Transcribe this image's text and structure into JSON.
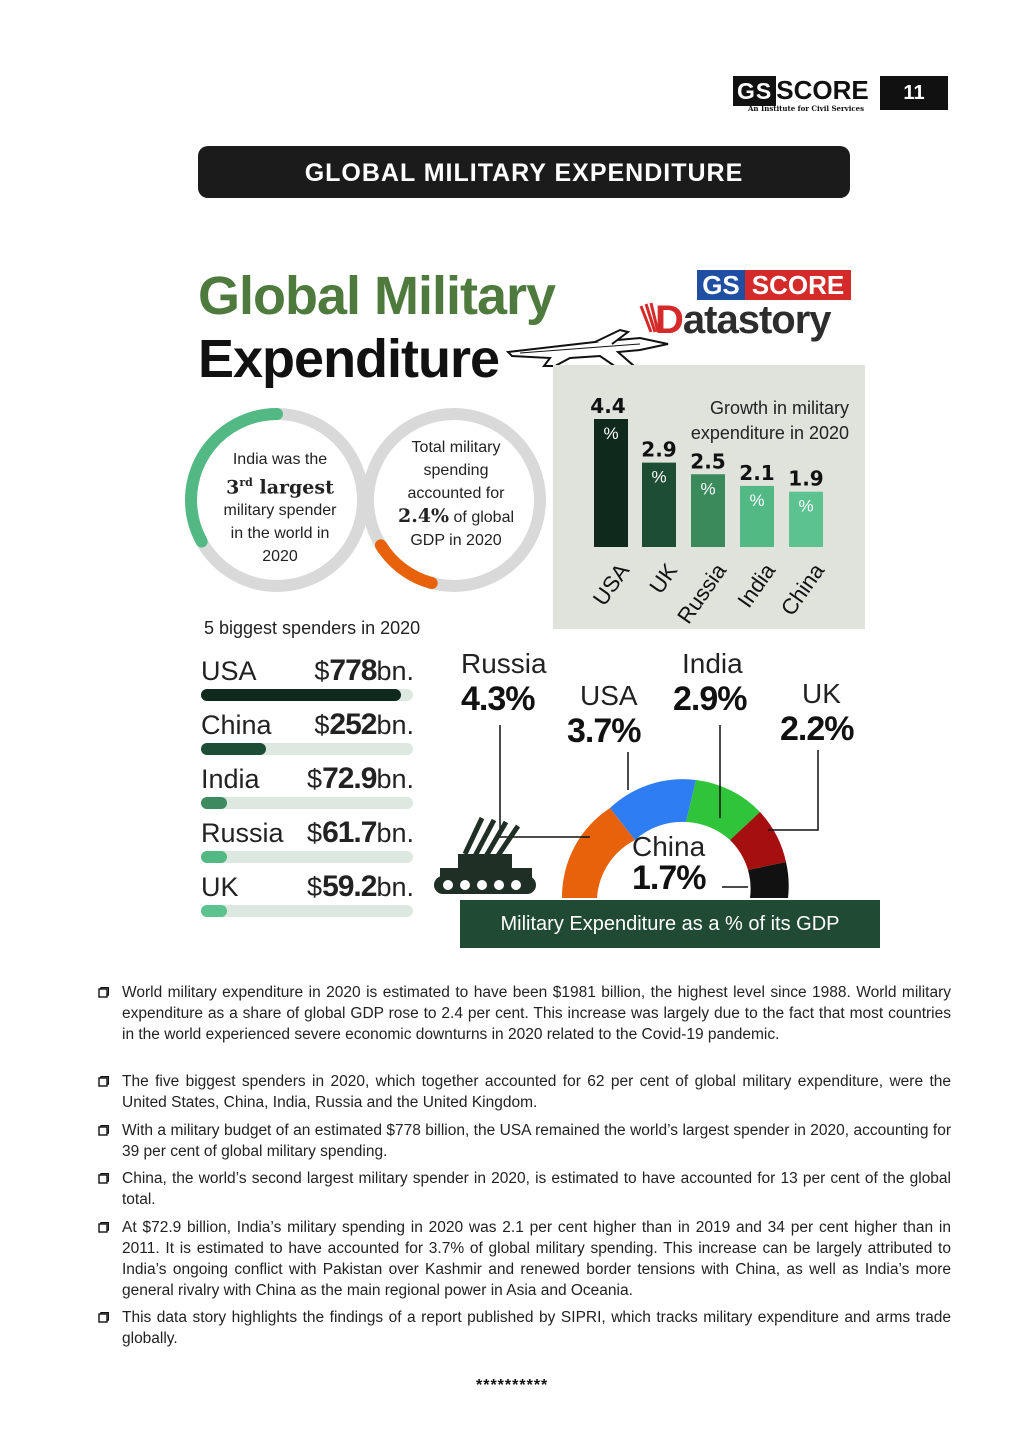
{
  "header": {
    "logo_gs": "GS",
    "logo_score": "SCORE",
    "logo_tagline": "An Institute for Civil Services",
    "page_number": "11"
  },
  "banner_title": "GLOBAL MILITARY EXPENDITURE",
  "infographic": {
    "title_line1": "Global Military",
    "title_line2": "Expenditure",
    "brand_gs": "GS",
    "brand_score": "SCORE",
    "brand_datastory_d": "D",
    "brand_datastory_rest": "atastory",
    "circle1": {
      "line1": "India was the",
      "rank": "3",
      "rank_suffix": "rd",
      "rank_word": "largest",
      "line3": "military spender",
      "line4": "in the world in",
      "line5": "2020",
      "progress_fraction": 0.33
    },
    "circle2": {
      "line1": "Total military",
      "line2": "spending",
      "line3": "accounted for",
      "highlight": "2.4%",
      "line4_rest": "of global",
      "line5": "GDP in 2020",
      "progress_fraction": 0.12
    },
    "growth_title_line1": "Growth in military",
    "growth_title_line2": "expenditure in 2020",
    "growth_unit": "%",
    "spenders_heading": "5 biggest spenders in 2020",
    "spenders": [
      {
        "name": "USA",
        "currency": "$",
        "amount": "778",
        "unit": "bn.",
        "value": 778,
        "color": "#0f2a1c"
      },
      {
        "name": "China",
        "currency": "$",
        "amount": "252",
        "unit": "bn.",
        "value": 252,
        "color": "#1d4d33"
      },
      {
        "name": "India",
        "currency": "$",
        "amount": "72.9",
        "unit": "bn.",
        "value": 72.9,
        "color": "#3d8a5e"
      },
      {
        "name": "Russia",
        "currency": "$",
        "amount": "61.7",
        "unit": "bn.",
        "value": 61.7,
        "color": "#52b985"
      },
      {
        "name": "UK",
        "currency": "$",
        "amount": "59.2",
        "unit": "bn.",
        "value": 59.2,
        "color": "#5cc290"
      }
    ],
    "gdp_labels": [
      {
        "country": "Russia",
        "value": "4.3%"
      },
      {
        "country": "USA",
        "value": "3.7%"
      },
      {
        "country": "India",
        "value": "2.9%"
      },
      {
        "country": "UK",
        "value": "2.2%"
      },
      {
        "country": "China",
        "value": "1.7%"
      }
    ],
    "gdp_caption": "Military Expenditure as a % of its GDP",
    "colors": {
      "title_green": "#4e7b3d",
      "russia": "#e8620c",
      "usa": "#2f7df2",
      "india": "#2fc43a",
      "uk": "#a50f0f",
      "china": "#111111",
      "caption_bg": "#204a33"
    }
  },
  "chart_data": {
    "type": "bar",
    "categories": [
      "USA",
      "UK",
      "Russia",
      "India",
      "China"
    ],
    "values": [
      4.4,
      2.9,
      2.5,
      2.1,
      1.9
    ],
    "title": "Growth in military expenditure in 2020",
    "xlabel": "",
    "ylabel": "",
    "ylim": [
      0,
      4.4
    ],
    "value_labels": [
      "4.4",
      "2.9",
      "2.5",
      "2.1",
      "1.9"
    ],
    "bar_colors": [
      "#0f2a1c",
      "#1d4d33",
      "#3a8a5c",
      "#52b985",
      "#5cc290"
    ]
  },
  "bullets": [
    "World military expenditure in 2020 is estimated to have been $1981 billion, the highest level since 1988. World military expenditure as a share of global GDP rose to 2.4 per cent. This increase was largely due to the fact that most countries in the world experienced severe economic downturns in 2020 related to the Covid-19 pandemic.",
    "The five biggest spenders in 2020, which together accounted for 62 per cent of global military expenditure, were the United States, China, India, Russia and the United Kingdom.",
    "With a military budget of an estimated $778 billion, the USA remained the world’s largest spender in 2020, accounting for 39 per cent of global military spending.",
    "China, the world’s second largest military spender in 2020, is estimated to have accounted for 13 per cent of the global total.",
    "At $72.9 billion, India’s military spending in 2020 was 2.1 per cent higher than in 2019 and 34 per cent higher than in 2011. It is estimated to have accounted for 3.7% of global military spending. This increase can be largely attributed to India’s ongoing conflict with Pakistan over Kashmir and renewed border tensions with China, as well as India’s more general rivalry with China as the main regional power in Asia and Oceania.",
    "This data story highlights the findings of a report published by SIPRI, which tracks military expenditure and arms trade globally."
  ],
  "footer_stars": "**********"
}
